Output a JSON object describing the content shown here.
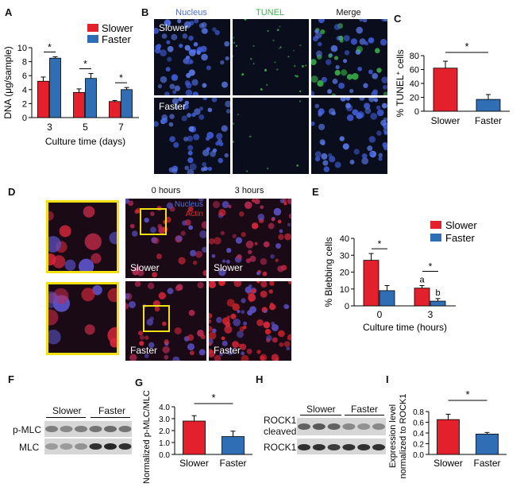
{
  "colors": {
    "slower": "#e3202b",
    "faster": "#2f6db5",
    "nucleus": "#4f6fd8",
    "tunel": "#3bb54a",
    "actin": "#e0262b",
    "highlight": "#f2e012"
  },
  "panels": {
    "A": {
      "label": "A"
    },
    "B": {
      "label": "B"
    },
    "C": {
      "label": "C"
    },
    "D": {
      "label": "D"
    },
    "E": {
      "label": "E"
    },
    "F": {
      "label": "F"
    },
    "G": {
      "label": "G"
    },
    "H": {
      "label": "H"
    },
    "I": {
      "label": "I"
    }
  },
  "panel_b": {
    "headers": [
      "Nucleus",
      "TUNEL",
      "Merge"
    ],
    "rows": [
      "Slower",
      "Faster"
    ]
  },
  "panel_d": {
    "headers": [
      "0 hours",
      "3 hours"
    ],
    "stain_nucleus": "Nucleus",
    "stain_actin": "Actin",
    "rows": [
      "Slower",
      "Faster"
    ]
  },
  "panel_f": {
    "groups": [
      "Slower",
      "Faster"
    ],
    "bands": [
      "p-MLC",
      "MLC"
    ]
  },
  "panel_h": {
    "groups": [
      "Slower",
      "Faster"
    ],
    "bands": [
      "ROCK1-cleaved",
      "ROCK1"
    ],
    "band1_line1": "ROCK1-",
    "band1_line2": "cleaved"
  },
  "chart_data": [
    {
      "id": "A",
      "type": "bar",
      "categories": [
        "3",
        "5",
        "7"
      ],
      "series": [
        {
          "name": "Slower",
          "values": [
            5.2,
            3.6,
            2.3
          ],
          "errors": [
            0.6,
            0.5,
            0.15
          ]
        },
        {
          "name": "Faster",
          "values": [
            8.5,
            5.6,
            4.0
          ],
          "errors": [
            0.2,
            0.7,
            0.3
          ]
        }
      ],
      "xlabel": "Culture time (days)",
      "ylabel": "DNA (μg/sample)",
      "ylim": [
        0,
        10
      ],
      "yticks": [
        "0",
        "2",
        "4",
        "6",
        "8",
        "10"
      ],
      "significance": [
        "*",
        "*",
        "*"
      ],
      "legend": "top-right"
    },
    {
      "id": "C",
      "type": "bar",
      "categories": [
        "Slower",
        "Faster"
      ],
      "values": [
        62,
        17
      ],
      "errors": [
        10,
        7
      ],
      "ylabel_main": "% TUNEL",
      "ylabel_sup": "+",
      "ylabel_rest": " cells",
      "ylim": [
        0,
        80
      ],
      "yticks": [
        "0",
        "20",
        "40",
        "60",
        "80"
      ],
      "significance": "*"
    },
    {
      "id": "E",
      "type": "bar",
      "categories": [
        "0",
        "3"
      ],
      "series": [
        {
          "name": "Slower",
          "values": [
            27,
            10.5
          ],
          "errors": [
            4,
            1.5
          ]
        },
        {
          "name": "Faster",
          "values": [
            9,
            2.8
          ],
          "errors": [
            3,
            1.5
          ]
        }
      ],
      "xlabel": "Culture time (hours)",
      "ylabel": "% Blebbing cells",
      "ylim": [
        0,
        40
      ],
      "yticks": [
        "0",
        "10",
        "20",
        "30",
        "40"
      ],
      "significance": [
        "*",
        "*"
      ],
      "letters": [
        "a",
        "b"
      ],
      "legend": "top-right"
    },
    {
      "id": "G",
      "type": "bar",
      "categories": [
        "Slower",
        "Faster"
      ],
      "values": [
        2.8,
        1.5
      ],
      "errors": [
        0.45,
        0.45
      ],
      "ylabel": "Normalized p-MLC/MLC",
      "ylim": [
        0,
        4
      ],
      "yticks": [
        "0.0",
        "1.0",
        "2.0",
        "3.0",
        "4.0"
      ],
      "significance": "*"
    },
    {
      "id": "I",
      "type": "bar",
      "categories": [
        "Slower",
        "Faster"
      ],
      "values": [
        0.65,
        0.38
      ],
      "errors": [
        0.1,
        0.03
      ],
      "ylabel_line1": "Expression level",
      "ylabel_line2": "normalized to ROCK1",
      "ylim": [
        0,
        0.8
      ],
      "yticks": [
        "0.0",
        "0.2",
        "0.4",
        "0.6",
        "0.8"
      ],
      "significance": "*"
    }
  ]
}
